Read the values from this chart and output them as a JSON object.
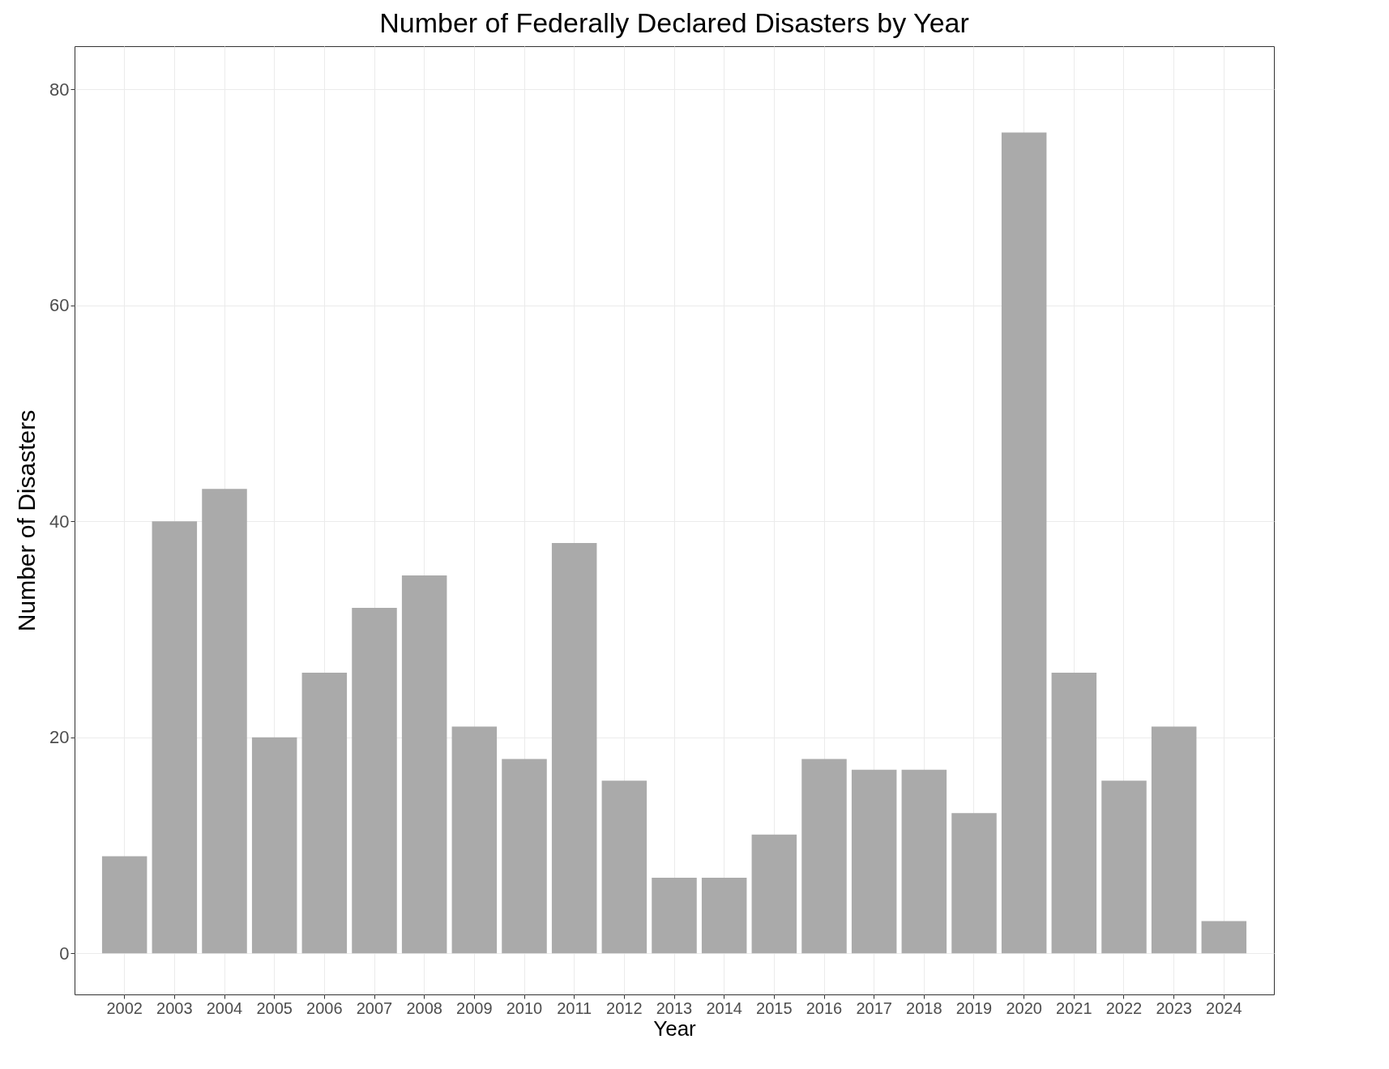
{
  "chart_data": {
    "type": "bar",
    "title": "Number of Federally Declared Disasters by Year",
    "xlabel": "Year",
    "ylabel": "Number of Disasters",
    "categories": [
      "2002",
      "2003",
      "2004",
      "2005",
      "2006",
      "2007",
      "2008",
      "2009",
      "2010",
      "2011",
      "2012",
      "2013",
      "2014",
      "2015",
      "2016",
      "2017",
      "2018",
      "2019",
      "2020",
      "2021",
      "2022",
      "2023",
      "2024"
    ],
    "values": [
      9,
      40,
      43,
      20,
      26,
      32,
      35,
      21,
      18,
      38,
      16,
      7,
      7,
      11,
      18,
      17,
      17,
      13,
      76,
      26,
      16,
      21,
      3
    ],
    "color": "#aaaaaa",
    "ylim": [
      -3.8,
      84
    ],
    "yticks": [
      0,
      20,
      40,
      60,
      80
    ],
    "grid": true
  }
}
